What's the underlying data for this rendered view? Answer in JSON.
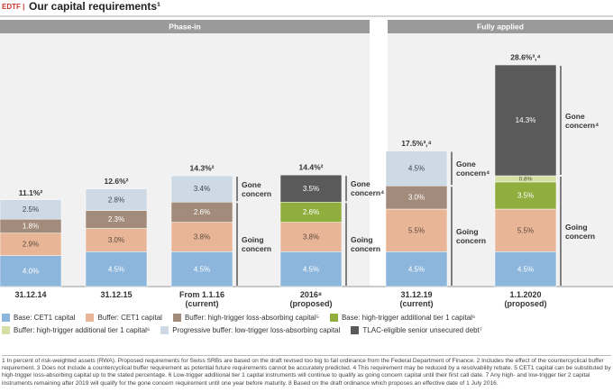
{
  "header": {
    "tag": "EDTF |",
    "title": "Our capital requirements¹"
  },
  "chart_data": {
    "type": "bar",
    "stacked": true,
    "phases": [
      "Phase-in",
      "Fully applied"
    ],
    "categories": [
      "31.12.14",
      "31.12.15",
      "From 1.1.16\n(current)",
      "2016⁸\n(proposed)",
      "31.12.19\n(current)",
      "1.1.2020\n(proposed)"
    ],
    "totals": [
      11.1,
      12.6,
      14.3,
      14.4,
      17.5,
      28.6
    ],
    "total_labels": [
      "11.1%²",
      "12.6%²",
      "14.3%²",
      "14.4%²",
      "17.5%³,⁴",
      "28.6%³,⁴"
    ],
    "gone_labels": [
      null,
      null,
      "Gone\nconcern",
      "Gone\nconcern⁴",
      "Gone\nconcern⁴",
      "Gone\nconcern⁴"
    ],
    "going_labels": [
      null,
      null,
      "Going\nconcern",
      "Going\nconcern",
      "Going\nconcern",
      "Going\nconcern"
    ],
    "series": [
      {
        "name": "Base: CET1 capital",
        "color": "#8db6dc",
        "text_color": "#ffffff",
        "values": [
          4.0,
          4.5,
          4.5,
          4.5,
          4.5,
          4.5
        ],
        "value_labels": [
          "4.0%",
          "4.5%",
          "4.5%",
          "4.5%",
          "4.5%",
          "4.5%"
        ]
      },
      {
        "name": "Buffer: CET1 capital",
        "color": "#e8b696",
        "text_color": "#5a4a40",
        "values": [
          2.9,
          3.0,
          3.8,
          3.8,
          5.5,
          5.5
        ],
        "value_labels": [
          "2.9%",
          "3.0%",
          "3.8%",
          "3.8%",
          "5.5%",
          "5.5%"
        ]
      },
      {
        "name": "Buffer: high-trigger loss-absorbing capital⁵",
        "color": "#a38b7b",
        "text_color": "#ffffff",
        "values": [
          1.8,
          2.3,
          2.6,
          null,
          3.0,
          null
        ],
        "value_labels": [
          "1.8%",
          "2.3%",
          "2.6%",
          null,
          "3.0%",
          null
        ]
      },
      {
        "name": "Base: high-trigger additional tier 1 capital⁶",
        "color": "#8fae3e",
        "text_color": "#ffffff",
        "values": [
          null,
          null,
          null,
          2.6,
          null,
          3.5
        ],
        "value_labels": [
          null,
          null,
          null,
          "2.6%",
          null,
          "3.5%"
        ]
      },
      {
        "name": "Buffer: high-trigger additional tier 1 capital⁶",
        "color": "#d5e0a6",
        "text_color": "#4a5030",
        "values": [
          null,
          null,
          null,
          null,
          null,
          0.8
        ],
        "value_labels": [
          null,
          null,
          null,
          null,
          null,
          "0.8%"
        ]
      },
      {
        "name": "Progressive buffer: low-trigger loss-absorbing capital",
        "color": "#cdd9e5",
        "text_color": "#3c4650",
        "values": [
          2.5,
          2.8,
          3.4,
          null,
          4.5,
          null
        ],
        "value_labels": [
          "2.5%",
          "2.8%",
          "3.4%",
          null,
          "4.5%",
          null
        ]
      },
      {
        "name": "TLAC-eligible senior unsecured debt⁷",
        "color": "#5a5a5a",
        "text_color": "#ffffff",
        "values": [
          null,
          null,
          null,
          3.5,
          null,
          14.3
        ],
        "value_labels": [
          null,
          null,
          null,
          "3.5%",
          null,
          "14.3%"
        ]
      }
    ]
  },
  "footnotes": "1 In percent of risk-weighted assets (RWA). Proposed requirements for Swiss SRBs are based on the draft revised too big to fail ordinance from the Federal Department of Finance.   2 Includes the effect of the countercyclical buffer requirement.   3 Does not include a countercyclical buffer requirement as potential future requirements cannot be accurately predicted.   4 This requirement may be reduced by a resolvability rebate.   5 CET1 capital can be substituted by high-trigger loss-absorbing capital up to the stated percentage.   6 Low-trigger additional tier 1 capital instruments will continue to qualify as going concern capital until their first call date.   7 Any high- and low-trigger tier 2 capital instruments remaining after 2019 will qualify for the gone concern requirement until one year before maturity.   8 Based on the draft ordinance which proposes an effective date of 1 July 2016."
}
